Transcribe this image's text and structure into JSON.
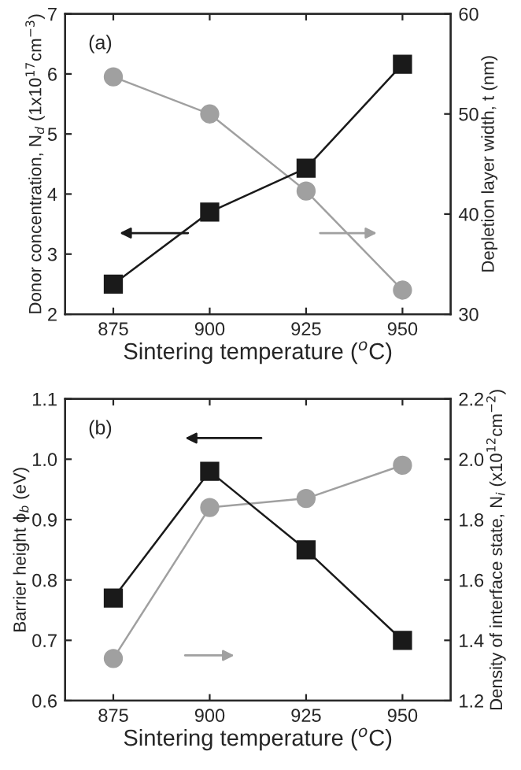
{
  "chart_data": [
    {
      "type": "line",
      "annotations": [
        "(a)"
      ],
      "xlabel": "Sintering temperature ($^{o}$C)",
      "ylabel": "Donor concentration, N$_{d}$ (1x10$^{17}$cm$^{−3}$)",
      "y2label": "Depletion layer width, t (nm)",
      "x": [
        875,
        900,
        925,
        950
      ],
      "xlim": [
        862.5,
        962.5
      ],
      "xticks": [
        875,
        900,
        925,
        950
      ],
      "ylim": [
        2,
        7
      ],
      "yticks": [
        2,
        3,
        4,
        5,
        6,
        7
      ],
      "y2lim": [
        30,
        60
      ],
      "y2ticks": [
        30,
        40,
        50,
        60
      ],
      "grid": false,
      "legend": false,
      "series": [
        {
          "color": "#1a1a1a",
          "marker": "square",
          "values": [
            2.5,
            3.7,
            4.43,
            6.16
          ]
        },
        {
          "color": "#a0a0a0",
          "marker": "circle",
          "axis": "y2",
          "values": [
            53.7,
            50.0,
            42.3,
            32.4
          ]
        }
      ]
    },
    {
      "type": "line",
      "annotations": [
        "(b)"
      ],
      "xlabel": "Sintering temperature ($^{o}$C)",
      "ylabel": "Barrier height ϕ$_{b}$ (eV)",
      "y2label": "Density of interface state, N$_{i}$ (x10$^{12}$cm$^{−2}$)",
      "x": [
        875,
        900,
        925,
        950
      ],
      "xlim": [
        862.5,
        962.5
      ],
      "xticks": [
        875,
        900,
        925,
        950
      ],
      "ylim": [
        0.6,
        1.1
      ],
      "yticks": [
        {
          "value": 0.6,
          "label": "0.6"
        },
        {
          "value": 0.7,
          "label": "0.7"
        },
        {
          "value": 0.8,
          "label": "0.8"
        },
        {
          "value": 0.9,
          "label": "0.9"
        },
        {
          "value": 1.0,
          "label": "1.0"
        },
        {
          "value": 1.1,
          "label": "1.1"
        }
      ],
      "y2lim": [
        1.2,
        2.2
      ],
      "y2ticks": [
        {
          "value": 1.2,
          "label": "1.2"
        },
        {
          "value": 1.4,
          "label": "1.4"
        },
        {
          "value": 1.6,
          "label": "1.6"
        },
        {
          "value": 1.8,
          "label": "1.8"
        },
        {
          "value": 2.0,
          "label": "2.0"
        },
        {
          "value": 2.2,
          "label": "2.2"
        }
      ],
      "grid": false,
      "legend": false,
      "series": [
        {
          "color": "#1a1a1a",
          "marker": "square",
          "values": [
            0.77,
            0.98,
            0.85,
            0.7
          ]
        },
        {
          "color": "#a0a0a0",
          "marker": "circle",
          "axis": "y2",
          "values": [
            1.34,
            1.84,
            1.87,
            1.98
          ]
        }
      ]
    }
  ]
}
